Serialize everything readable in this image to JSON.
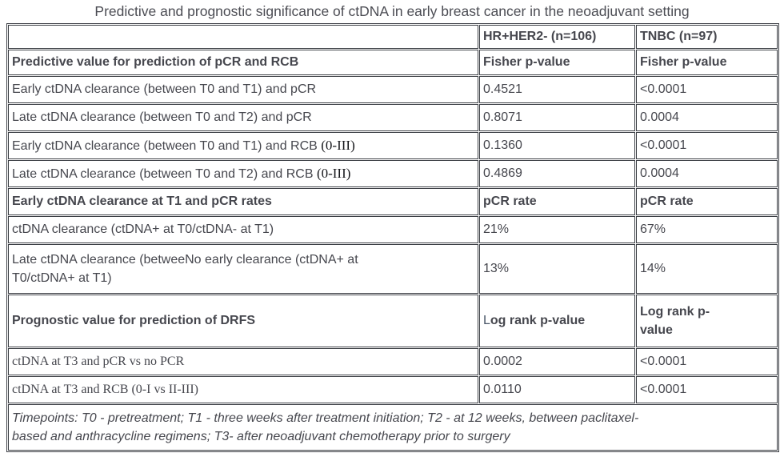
{
  "title": "Predictive and prognostic significance of ctDNA in early breast cancer in the neoadjuvant setting",
  "colors": {
    "border": "#3c3f45",
    "title_text": "#4c4d54",
    "body_text": "#46474e",
    "bold_text": "#141519",
    "serif_text": "#15161a"
  },
  "table": {
    "header": {
      "col1": "",
      "col2": "HR+HER2- (n=106)",
      "col3": "TNBC (n=97)"
    },
    "rows": [
      {
        "label": "Predictive value for prediction of pCR and RCB",
        "hr_her2": "Fisher p-value",
        "tnbc": "Fisher p-value"
      },
      {
        "label": "Early ctDNA clearance (between T0 and T1) and pCR",
        "hr_her2": "0.4521",
        "tnbc": "<0.0001"
      },
      {
        "label": "Late ctDNA clearance (between T0 and T2) and pCR",
        "hr_her2": "0.8071",
        "tnbc": "0.0004"
      },
      {
        "label": "Early ctDNA clearance (between T0 and T1) and RCB ",
        "label_serif": "(0-III)",
        "hr_her2": "0.1360",
        "tnbc": "<0.0001"
      },
      {
        "label": "Late ctDNA clearance (between T0 and T2) and RCB ",
        "label_serif": "(0-III)",
        "hr_her2": "0.4869",
        "tnbc": "0.0004"
      },
      {
        "label": "Early ctDNA clearance at T1 and pCR rates",
        "hr_her2": "pCR rate",
        "tnbc": "pCR rate"
      },
      {
        "label": "ctDNA clearance (ctDNA+ at T0/ctDNA- at T1)",
        "hr_her2": "21%",
        "tnbc": "67%"
      },
      {
        "label": "Late ctDNA clearance (betweeNo early clearance (ctDNA+ at T0/ctDNA+ at T1)",
        "hr_her2": "13%",
        "tnbc": "14%"
      },
      {
        "label": "Prognostic value for prediction of DRFS",
        "hr_her2": "Log rank p-value",
        "tnbc": "Log rank p-value"
      },
      {
        "label": "ctDNA at T3 and pCR vs no PCR",
        "hr_her2": "0.0002",
        "tnbc": "<0.0001"
      },
      {
        "label": "ctDNA at T3 and RCB (0-I vs II-III)",
        "hr_her2": "0.0110",
        "tnbc": "<0.0001"
      }
    ]
  },
  "footnote": "Timepoints: T0 - pretreatment; T1 - three weeks after treatment initiation; T2 - at 12 weeks, between paclitaxel-based and anthracycline regimens; T3- after neoadjuvant chemotherapy prior to surgery"
}
